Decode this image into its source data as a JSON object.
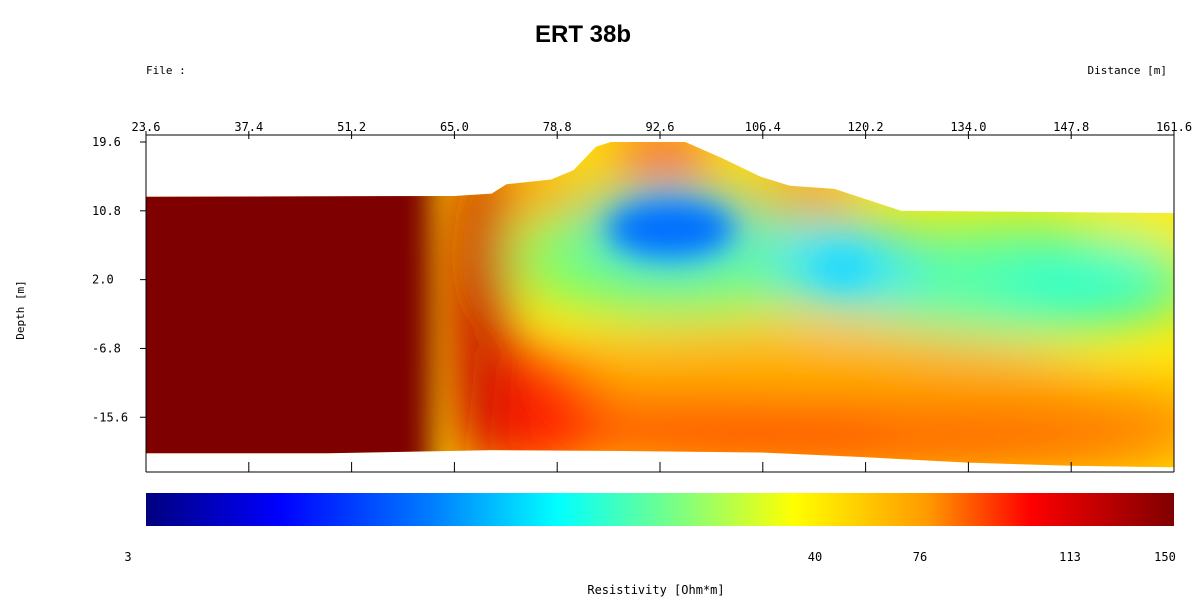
{
  "chart_data": {
    "type": "heatmap",
    "title": "ERT 38b",
    "file_label": "File :",
    "xlabel": "Distance [m]",
    "ylabel": "Depth [m]",
    "colorbar_label": "Resistivity [Ohm*m]",
    "x_ticks": [
      "23.6",
      "37.4",
      "51.2",
      "65.0",
      "78.8",
      "92.6",
      "106.4",
      "120.2",
      "134.0",
      "147.8",
      "161.6"
    ],
    "y_ticks": [
      "19.6",
      "10.8",
      "2.0",
      "-6.8",
      "-15.6"
    ],
    "xlim": [
      23.6,
      161.6
    ],
    "ylim": [
      -22.6,
      19.6
    ],
    "colorbar_ticks": [
      {
        "label": "3",
        "value": 3
      },
      {
        "label": "40",
        "value": 40
      },
      {
        "label": "76",
        "value": 76
      },
      {
        "label": "113",
        "value": 113
      },
      {
        "label": "150",
        "value": 150
      }
    ],
    "colormap": [
      "#00007f",
      "#0000ff",
      "#007fff",
      "#00ffff",
      "#7fff7f",
      "#ffff00",
      "#ff7f00",
      "#ff0000",
      "#7f0000"
    ],
    "top_surface": [
      [
        23.6,
        12.6
      ],
      [
        65.0,
        12.7
      ],
      [
        70.0,
        13.0
      ],
      [
        72.0,
        14.2
      ],
      [
        78.0,
        14.8
      ],
      [
        81.0,
        16.0
      ],
      [
        84.0,
        19.0
      ],
      [
        86.0,
        19.6
      ],
      [
        96.0,
        19.6
      ],
      [
        101.0,
        17.5
      ],
      [
        106.0,
        15.2
      ],
      [
        110.0,
        14.0
      ],
      [
        116.0,
        13.6
      ],
      [
        125.0,
        10.8
      ],
      [
        161.6,
        10.5
      ]
    ],
    "bottom_surface": [
      [
        23.6,
        -20.2
      ],
      [
        48.0,
        -20.2
      ],
      [
        65.0,
        -19.9
      ],
      [
        70.0,
        -19.8
      ],
      [
        86.0,
        -19.9
      ],
      [
        106.0,
        -20.1
      ],
      [
        120.0,
        -20.7
      ],
      [
        134.0,
        -21.4
      ],
      [
        147.8,
        -21.8
      ],
      [
        161.6,
        -22.0
      ]
    ],
    "anomalies": [
      {
        "zone": "high resistivity",
        "x": [
          23.6,
          68.0
        ],
        "y": [
          -20.2,
          12.7
        ],
        "value": 150
      },
      {
        "zone": "low resistivity",
        "x": [
          86.0,
          102.0
        ],
        "y": [
          4.0,
          12.0
        ],
        "value": 8
      },
      {
        "zone": "low resistivity",
        "x": [
          112.0,
          122.0
        ],
        "y": [
          0.0,
          6.0
        ],
        "value": 18
      },
      {
        "zone": "moderate resistivity",
        "x": [
          130.0,
          161.6
        ],
        "y": [
          -6.0,
          8.0
        ],
        "value": 25
      },
      {
        "zone": "near-surface high",
        "x": [
          86.0,
          100.0
        ],
        "y": [
          15.0,
          19.6
        ],
        "value": 113
      }
    ]
  }
}
